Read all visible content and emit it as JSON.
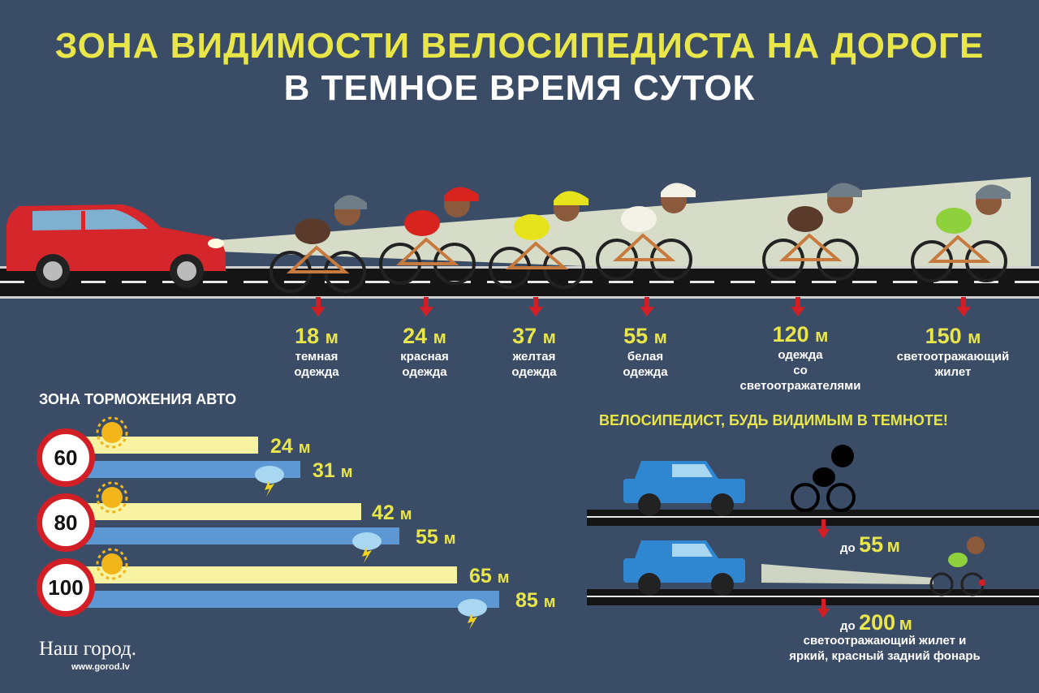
{
  "title_line1": "ЗОНА ВИДИМОСТИ ВЕЛОСИПЕДИСТА НА ДОРОГЕ",
  "title_line2": "В ТЕМНОЕ ВРЕМЯ СУТОК",
  "visibility": [
    {
      "value": "18",
      "unit": "м",
      "desc1": "темная",
      "desc2": "одежда",
      "desc3": "",
      "color": "#5a3a2a"
    },
    {
      "value": "24",
      "unit": "м",
      "desc1": "красная",
      "desc2": "одежда",
      "desc3": "",
      "color": "#d8231e"
    },
    {
      "value": "37",
      "unit": "м",
      "desc1": "желтая",
      "desc2": "одежда",
      "desc3": "",
      "color": "#e6e21b"
    },
    {
      "value": "55",
      "unit": "м",
      "desc1": "белая",
      "desc2": "одежда",
      "desc3": "",
      "color": "#f4f1e6"
    },
    {
      "value": "120",
      "unit": "м",
      "desc1": "одежда",
      "desc2": "со",
      "desc3": "светоотражателями",
      "color": "#5a3a2a"
    },
    {
      "value": "150",
      "unit": "м",
      "desc1": "светоотражающий",
      "desc2": "жилет",
      "desc3": "",
      "color": "#8fd13c"
    }
  ],
  "braking_title": "ЗОНА ТОРМОЖЕНИЯ АВТО",
  "braking": [
    {
      "speed": "60",
      "dry": "24",
      "wet": "31",
      "unit": "м"
    },
    {
      "speed": "80",
      "dry": "42",
      "wet": "55",
      "unit": "м"
    },
    {
      "speed": "100",
      "dry": "65",
      "wet": "85",
      "unit": "м"
    }
  ],
  "slogan": "ВЕЛОСИПЕДИСТ, БУДЬ ВИДИМЫМ В ТЕМНОТЕ!",
  "compare": [
    {
      "prefix": "до",
      "value": "55",
      "unit": "м"
    },
    {
      "prefix": "до",
      "value": "200",
      "unit": "м"
    }
  ],
  "compare_note1": "светоотражающий жилет и",
  "compare_note2": "яркий, красный задний фонарь",
  "logo": "Наш город.",
  "logo_url": "www.gorod.lv",
  "colors": {
    "background": "#3b4c66",
    "accent": "#e9e64a",
    "car": "#d5262b",
    "jeep": "#2f86d1",
    "sign_border": "#d21f26"
  }
}
